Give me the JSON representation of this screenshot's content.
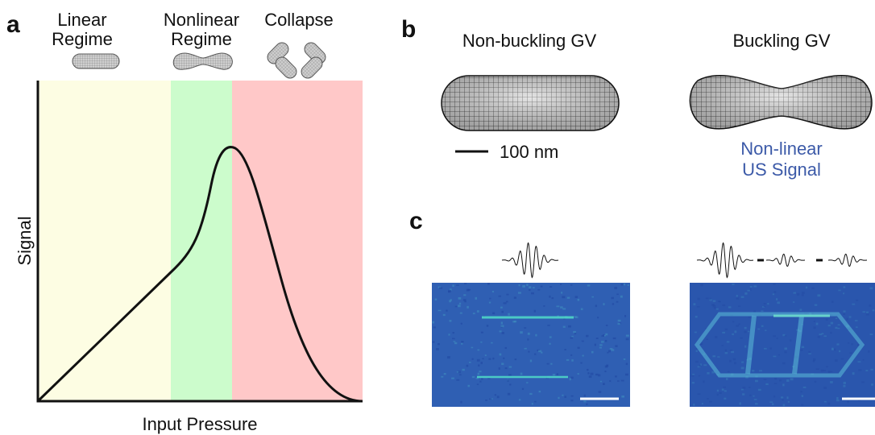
{
  "panel_a": {
    "label": "a",
    "regimes": [
      [
        "Linear",
        "Regime"
      ],
      [
        "Nonlinear",
        "Regime"
      ],
      [
        "Collapse"
      ]
    ],
    "y_label": "Signal",
    "x_label": "Input Pressure"
  },
  "panel_b": {
    "label": "b",
    "titles": [
      "Non-buckling GV",
      "Buckling GV"
    ],
    "scale_bar": "100 nm",
    "annotation": [
      "Non-linear",
      "US Signal"
    ]
  },
  "panel_c": {
    "label": "c"
  }
}
